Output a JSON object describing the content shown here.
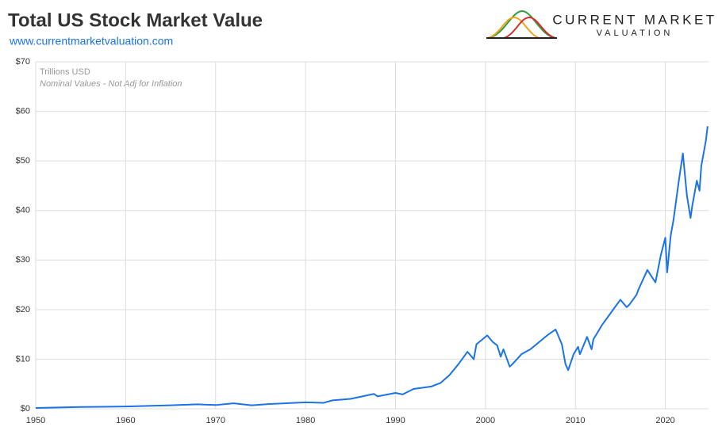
{
  "chart_data": {
    "type": "line",
    "title": "Total US Stock Market Value",
    "subtitle": "www.currentmarketvaluation.com",
    "logo": {
      "line1": "CURRENT MARKET",
      "line2": "VALUATION"
    },
    "annotations": [
      "Trillions USD",
      "Nominal Values - Not Adj for Inflation"
    ],
    "color": "#1a73e8",
    "grid": true,
    "xlim": [
      1950,
      2024.8
    ],
    "xticks": [
      1950,
      1960,
      1970,
      1980,
      1990,
      2000,
      2010,
      2020
    ],
    "ylim": [
      0,
      70
    ],
    "yticks": [
      {
        "value": 0,
        "label": "$0"
      },
      {
        "value": 10,
        "label": "$10"
      },
      {
        "value": 20,
        "label": "$20"
      },
      {
        "value": 30,
        "label": "$30"
      },
      {
        "value": 40,
        "label": "$40"
      },
      {
        "value": 50,
        "label": "$50"
      },
      {
        "value": 60,
        "label": "$60"
      },
      {
        "value": 70,
        "label": "$70"
      }
    ],
    "x": [
      1950,
      1955,
      1960,
      1965,
      1968,
      1970,
      1972,
      1974,
      1976,
      1980,
      1982,
      1983,
      1985,
      1987.6,
      1988,
      1990,
      1990.8,
      1992,
      1994,
      1995,
      1996,
      1997,
      1998,
      1998.7,
      1999,
      2000.2,
      2000.8,
      2001.3,
      2001.7,
      2002,
      2002.7,
      2003,
      2004,
      2005,
      2006,
      2007,
      2007.8,
      2008.5,
      2008.9,
      2009.2,
      2009.8,
      2010.3,
      2010.5,
      2011.3,
      2011.8,
      2012,
      2013,
      2014,
      2015,
      2015.7,
      2016,
      2016.8,
      2017,
      2018,
      2018.9,
      2019.5,
      2020,
      2020.2,
      2020.6,
      2020.9,
      2021.5,
      2021.95,
      2022.4,
      2022.8,
      2023,
      2023.5,
      2023.8,
      2024,
      2024.5,
      2024.7
    ],
    "values": [
      0.15,
      0.35,
      0.45,
      0.7,
      0.9,
      0.75,
      1.1,
      0.7,
      0.95,
      1.3,
      1.2,
      1.7,
      2.0,
      3.0,
      2.5,
      3.2,
      2.9,
      4.0,
      4.5,
      5.2,
      6.8,
      9,
      11.5,
      10,
      13,
      14.8,
      13.5,
      12.8,
      10.5,
      12,
      8.5,
      9,
      11,
      12,
      13.5,
      15,
      16,
      13,
      9,
      7.8,
      11,
      12.5,
      11,
      14.5,
      12,
      14,
      17,
      19.5,
      22,
      20.5,
      21,
      23,
      24,
      28,
      25.5,
      31,
      34.5,
      27.5,
      35,
      38,
      46,
      51.5,
      43,
      38.5,
      41,
      46,
      44,
      49,
      54,
      57
    ]
  }
}
